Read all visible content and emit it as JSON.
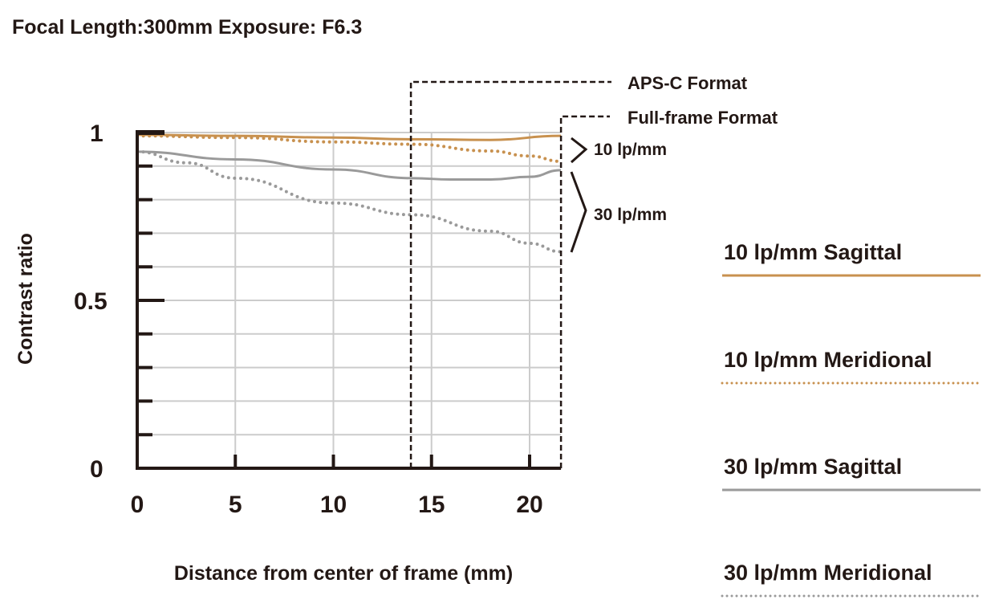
{
  "chart_data": {
    "type": "line",
    "title": "Focal Length:300mm  Exposure: F6.3",
    "xlabel": "Distance from center of frame (mm)",
    "ylabel": "Contrast ratio",
    "xlim": [
      0,
      21.6
    ],
    "ylim": [
      0,
      1
    ],
    "x_ticks": [
      "0",
      "5",
      "10",
      "15",
      "20"
    ],
    "y_ticks": [
      "0",
      "0.5",
      "1"
    ],
    "grid": true,
    "legend_position": "right",
    "colors": {
      "lp10": "#c8914f",
      "lp30": "#9a9a9a"
    },
    "format_markers": [
      {
        "label": "APS-C Format",
        "x": 13.95
      },
      {
        "label": "Full-frame Format",
        "x": 21.6
      }
    ],
    "group_labels": [
      "10 lp/mm",
      "30 lp/mm"
    ],
    "series": [
      {
        "name": "10 lp/mm Sagittal",
        "style": "solid",
        "color": "#c8914f",
        "x": [
          0,
          5,
          10,
          14,
          18,
          21.6
        ],
        "values": [
          0.993,
          0.99,
          0.985,
          0.98,
          0.978,
          0.99
        ]
      },
      {
        "name": "10 lp/mm Meridional",
        "style": "dotted",
        "color": "#c8914f",
        "x": [
          0,
          5,
          10,
          14,
          18,
          20,
          21.6
        ],
        "values": [
          0.99,
          0.985,
          0.972,
          0.965,
          0.945,
          0.93,
          0.914
        ]
      },
      {
        "name": "30 lp/mm Sagittal",
        "style": "solid",
        "color": "#9a9a9a",
        "x": [
          0,
          5,
          10,
          14,
          16,
          18,
          20,
          21.6
        ],
        "values": [
          0.943,
          0.92,
          0.89,
          0.864,
          0.86,
          0.86,
          0.868,
          0.888
        ]
      },
      {
        "name": "30 lp/mm Meridional",
        "style": "dotted",
        "color": "#9a9a9a",
        "x": [
          0,
          2.5,
          5,
          10,
          14,
          18,
          20,
          21.6
        ],
        "values": [
          0.943,
          0.91,
          0.864,
          0.79,
          0.755,
          0.706,
          0.67,
          0.645
        ]
      }
    ]
  }
}
